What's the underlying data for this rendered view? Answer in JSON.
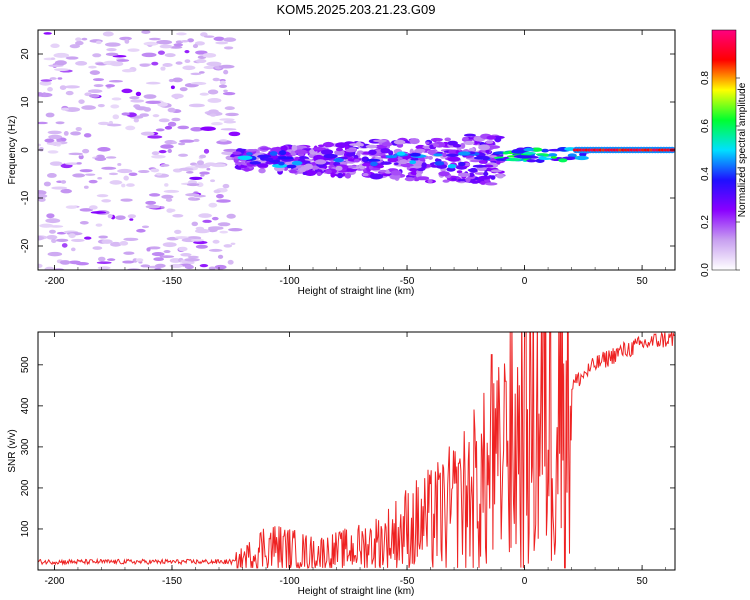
{
  "figure": {
    "title": "KOM5.2025.203.21.23.G09"
  },
  "chart_data": [
    {
      "type": "heatmap",
      "xlabel": "Height of straight line (km)",
      "ylabel": "Frequency (Hz)",
      "xlim": [
        -207,
        64
      ],
      "ylim": [
        -25,
        25
      ],
      "xticks": [
        -200,
        -150,
        -100,
        -50,
        0,
        50
      ],
      "yticks": [
        -20,
        -10,
        0,
        10,
        20
      ],
      "colorbar": {
        "label": "Normalized spectral amplitude",
        "range": [
          0,
          1
        ],
        "ticks": [
          "0.0",
          "0.2",
          "0.4",
          "0.6",
          "0.8"
        ],
        "colors": [
          "#ffffff",
          "#c8a0f0",
          "#8a00ff",
          "#1e10ff",
          "#00e0ff",
          "#00ff30",
          "#ffff00",
          "#ff0000",
          "#ff0080"
        ]
      },
      "regions": [
        {
          "x": [
            -207,
            -123
          ],
          "freq_spread_hz": 25,
          "amplitude": "noise ~0.05-0.15"
        },
        {
          "x": [
            -123,
            -10
          ],
          "freq_center_hz": -2,
          "freq_spread_hz": 5,
          "amplitude": "0.15-0.4"
        },
        {
          "x": [
            -10,
            25
          ],
          "freq_center_hz": -1,
          "freq_spread_hz": 2,
          "amplitude": "0.3-0.6"
        },
        {
          "x": [
            25,
            64
          ],
          "freq_center_hz": 0,
          "freq_spread_hz": 0.6,
          "amplitude": "0.8-1.0"
        }
      ]
    },
    {
      "type": "line",
      "xlabel": "Height of straight line (km)",
      "ylabel": "SNR (v/v)",
      "xlim": [
        -207,
        64
      ],
      "ylim": [
        0,
        580
      ],
      "xticks": [
        -200,
        -150,
        -100,
        -50,
        0,
        50
      ],
      "yticks": [
        100,
        200,
        300,
        400,
        500
      ],
      "series": [
        {
          "color": "#ee2222",
          "x": [
            -207,
            -180,
            -150,
            -123,
            -115,
            -110,
            -100,
            -90,
            -80,
            -70,
            -60,
            -50,
            -40,
            -30,
            -20,
            -14,
            -10,
            -5,
            0,
            10,
            20,
            30,
            40,
            50,
            57,
            64
          ],
          "y": [
            20,
            20,
            20,
            20,
            40,
            60,
            50,
            40,
            45,
            55,
            70,
            100,
            120,
            150,
            200,
            220,
            250,
            300,
            350,
            400,
            450,
            500,
            530,
            550,
            560,
            565
          ],
          "peaks": [
            {
              "x": -14,
              "y": 525
            },
            {
              "x": -38,
              "y": 240
            },
            {
              "x": -28,
              "y": 260
            },
            {
              "x": -8,
              "y": 460
            },
            {
              "x": -4,
              "y": 430
            }
          ]
        }
      ]
    }
  ]
}
